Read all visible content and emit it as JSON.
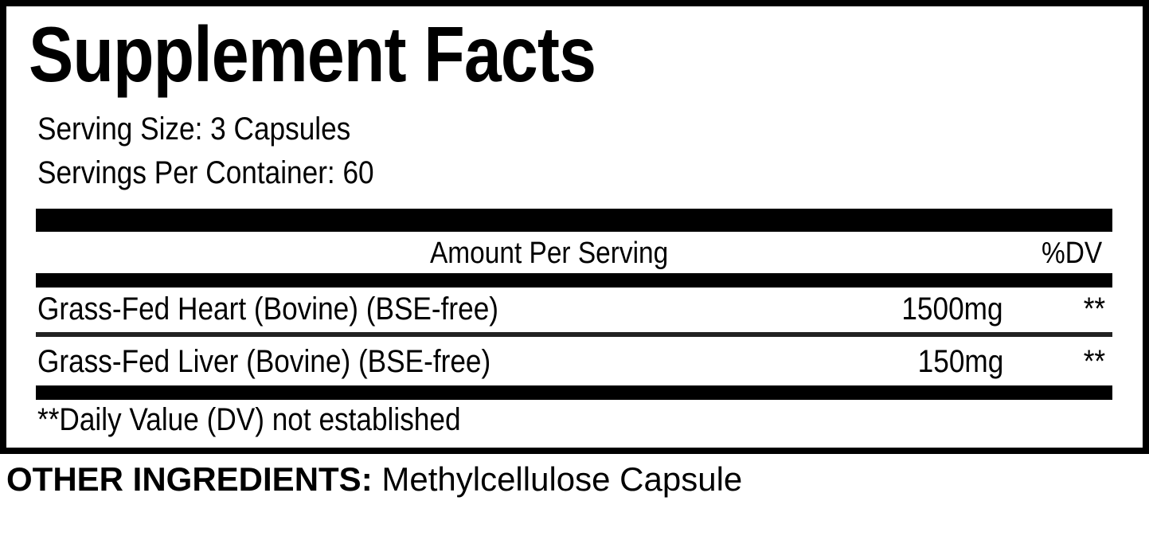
{
  "title": "Supplement Facts",
  "serving_size": "Serving Size: 3 Capsules",
  "servings_per_container": "Servings Per Container: 60",
  "header": {
    "amount": "Amount Per Serving",
    "dv": "%DV"
  },
  "ingredients": [
    {
      "name": "Grass-Fed Heart (Bovine) (BSE-free)",
      "amount": "1500mg",
      "dv": "**"
    },
    {
      "name": "Grass-Fed Liver (Bovine) (BSE-free)",
      "amount": "150mg",
      "dv": "**"
    }
  ],
  "footnote": "**Daily Value (DV) not established",
  "other_ingredients": {
    "label": "OTHER INGREDIENTS:",
    "value": "Methylcellulose Capsule"
  }
}
